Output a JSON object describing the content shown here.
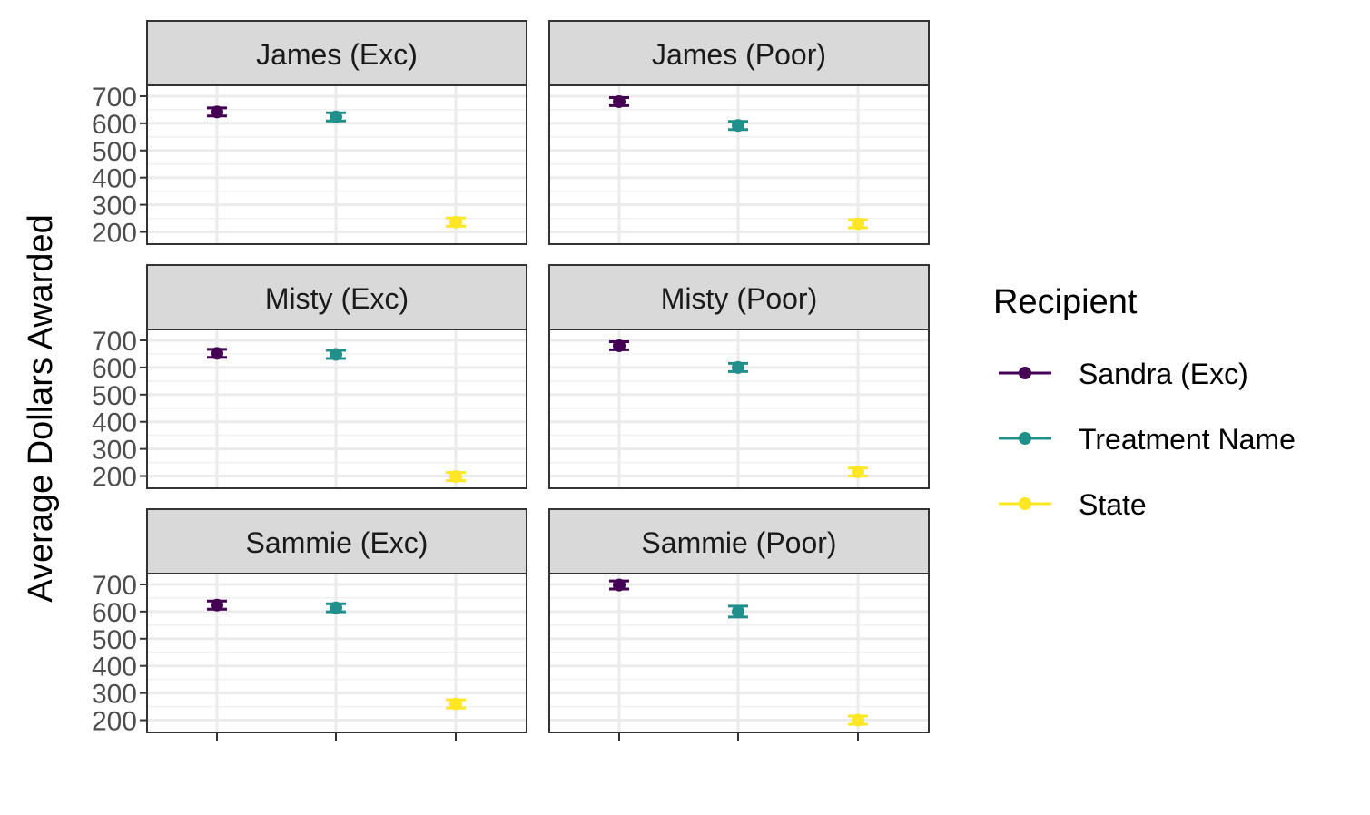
{
  "chart_data": {
    "type": "scatter",
    "subtype": "faceted-point-errorbar",
    "ylabel": "Average Dollars Awarded",
    "xlabel": "",
    "ylim": [
      155,
      740
    ],
    "yticks": [
      200,
      300,
      400,
      500,
      600,
      700
    ],
    "grid": true,
    "legend": {
      "title": "Recipient",
      "position": "right",
      "entries": [
        {
          "name": "Sandra (Exc)",
          "color": "#440154"
        },
        {
          "name": "Treatment Name",
          "color": "#21908C"
        },
        {
          "name": "State",
          "color": "#FDE725"
        }
      ]
    },
    "panel_layout": {
      "rows": 3,
      "cols": 2
    },
    "panels": [
      {
        "title": "James (Exc)",
        "points": [
          {
            "series": "Sandra (Exc)",
            "value": 642,
            "error": 15
          },
          {
            "series": "Treatment Name",
            "value": 624,
            "error": 15
          },
          {
            "series": "State",
            "value": 236,
            "error": 15
          }
        ]
      },
      {
        "title": "James (Poor)",
        "points": [
          {
            "series": "Sandra (Exc)",
            "value": 680,
            "error": 15
          },
          {
            "series": "Treatment Name",
            "value": 592,
            "error": 15
          },
          {
            "series": "State",
            "value": 230,
            "error": 15
          }
        ]
      },
      {
        "title": "Misty (Exc)",
        "points": [
          {
            "series": "Sandra (Exc)",
            "value": 652,
            "error": 15
          },
          {
            "series": "Treatment Name",
            "value": 648,
            "error": 15
          },
          {
            "series": "State",
            "value": 198,
            "error": 15
          }
        ]
      },
      {
        "title": "Misty (Poor)",
        "points": [
          {
            "series": "Sandra (Exc)",
            "value": 680,
            "error": 15
          },
          {
            "series": "Treatment Name",
            "value": 600,
            "error": 15
          },
          {
            "series": "State",
            "value": 215,
            "error": 15
          }
        ]
      },
      {
        "title": "Sammie (Exc)",
        "points": [
          {
            "series": "Sandra (Exc)",
            "value": 624,
            "error": 15
          },
          {
            "series": "Treatment Name",
            "value": 614,
            "error": 15
          },
          {
            "series": "State",
            "value": 260,
            "error": 15
          }
        ]
      },
      {
        "title": "Sammie (Poor)",
        "points": [
          {
            "series": "Sandra (Exc)",
            "value": 698,
            "error": 15
          },
          {
            "series": "Treatment Name",
            "value": 600,
            "error": 20
          },
          {
            "series": "State",
            "value": 200,
            "error": 15
          }
        ]
      }
    ]
  }
}
